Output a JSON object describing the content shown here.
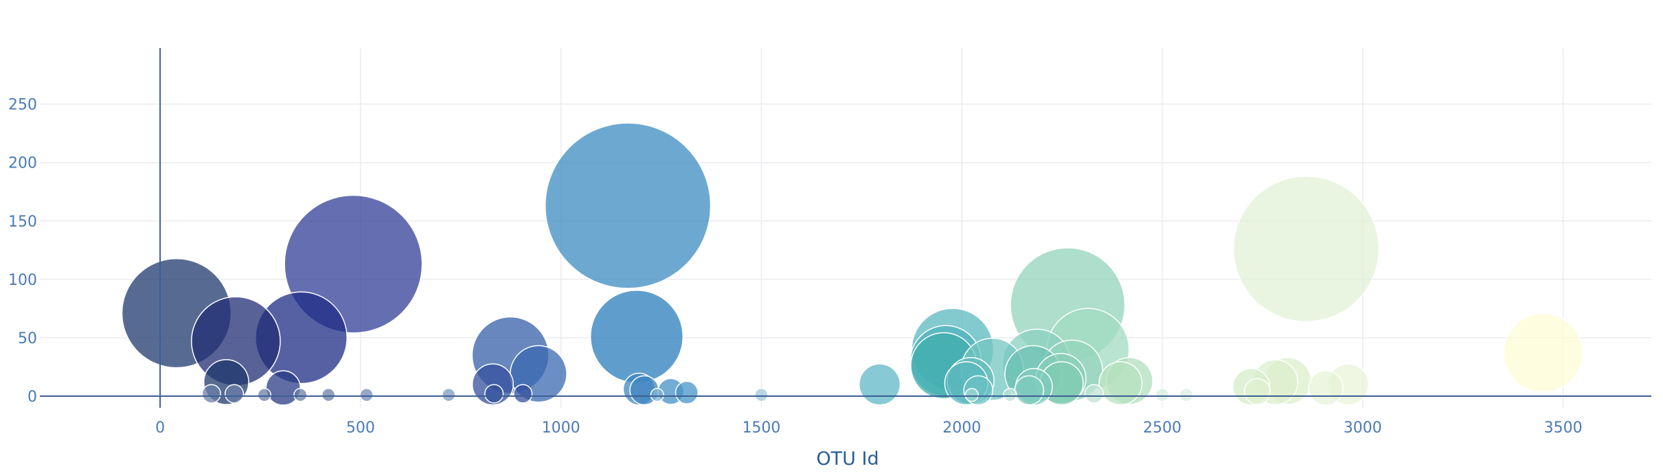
{
  "chart_data": {
    "type": "scatter",
    "subtype": "bubble",
    "title": "",
    "xlabel": "OTU Id",
    "ylabel": "",
    "xlim": [
      -300,
      3720
    ],
    "ylim": [
      -10,
      298
    ],
    "x_ticks": [
      0,
      500,
      1000,
      1500,
      2000,
      2500,
      3000,
      3500
    ],
    "y_ticks": [
      0,
      50,
      100,
      150,
      200,
      250
    ],
    "grid": true,
    "legend": "none",
    "colorscale": "Earth",
    "color_stops": [
      "#1f3a6e",
      "#323e96",
      "#4b75b8",
      "#4f9ac9",
      "#6cc2c4",
      "#a2dbc1",
      "#e2f2d5",
      "#ffffe0"
    ],
    "opacity": 0.75,
    "points": [
      {
        "x": 41,
        "y": 71,
        "color": "#1f3a6e"
      },
      {
        "x": 189,
        "y": 47,
        "color": "#222e74"
      },
      {
        "x": 165,
        "y": 12,
        "color": "#1f3a6e"
      },
      {
        "x": 307,
        "y": 7,
        "color": "#2a3c86"
      },
      {
        "x": 352,
        "y": 50,
        "color": "#1e2c86"
      },
      {
        "x": 482,
        "y": 113,
        "color": "#323e96"
      },
      {
        "x": 830,
        "y": 10,
        "color": "#34509e"
      },
      {
        "x": 874,
        "y": 35,
        "color": "#345fa8"
      },
      {
        "x": 944,
        "y": 19,
        "color": "#3a68b0"
      },
      {
        "x": 1167,
        "y": 163,
        "color": "#3c8bc0"
      },
      {
        "x": 1189,
        "y": 51,
        "color": "#2a7dbb"
      },
      {
        "x": 1195,
        "y": 6,
        "color": "#3f86c0"
      },
      {
        "x": 1208,
        "y": 5,
        "color": "#3f86c0"
      },
      {
        "x": 1274,
        "y": 4,
        "color": "#4490c5"
      },
      {
        "x": 1314,
        "y": 3,
        "color": "#4696c8"
      },
      {
        "x": 1795,
        "y": 10,
        "color": "#5fb7c5"
      },
      {
        "x": 1977,
        "y": 40,
        "color": "#5ab8bd"
      },
      {
        "x": 1960,
        "y": 30,
        "color": "#4eb3ba"
      },
      {
        "x": 1955,
        "y": 26,
        "color": "#40aeae"
      },
      {
        "x": 2011,
        "y": 11,
        "color": "#5ab8bd"
      },
      {
        "x": 2022,
        "y": 13,
        "color": "#62bcbd"
      },
      {
        "x": 2041,
        "y": 5,
        "color": "#6cc2c4"
      },
      {
        "x": 2076,
        "y": 23,
        "color": "#73c6c0"
      },
      {
        "x": 2187,
        "y": 28,
        "color": "#8ad0c0"
      },
      {
        "x": 2178,
        "y": 19,
        "color": "#6cc2b4"
      },
      {
        "x": 2180,
        "y": 8,
        "color": "#7fcbbe"
      },
      {
        "x": 2168,
        "y": 5,
        "color": "#7fcbbe"
      },
      {
        "x": 2264,
        "y": 78,
        "color": "#93d3bb"
      },
      {
        "x": 2315,
        "y": 40,
        "color": "#a2dbc1"
      },
      {
        "x": 2275,
        "y": 22,
        "color": "#95d4bc"
      },
      {
        "x": 2247,
        "y": 15,
        "color": "#88cfb8"
      },
      {
        "x": 2249,
        "y": 11,
        "color": "#7fcbb2"
      },
      {
        "x": 2396,
        "y": 11,
        "color": "#b6e2bf"
      },
      {
        "x": 2418,
        "y": 13,
        "color": "#b0dfbc"
      },
      {
        "x": 2722,
        "y": 8,
        "color": "#d6ecc8"
      },
      {
        "x": 2782,
        "y": 12,
        "color": "#dcefcc"
      },
      {
        "x": 2813,
        "y": 13,
        "color": "#dcefcc"
      },
      {
        "x": 2737,
        "y": 4,
        "color": "#e0f0d0"
      },
      {
        "x": 2859,
        "y": 126,
        "color": "#e2f2d5"
      },
      {
        "x": 2908,
        "y": 7,
        "color": "#e6f3d6"
      },
      {
        "x": 2964,
        "y": 10,
        "color": "#e9f4d8"
      },
      {
        "x": 3450,
        "y": 37,
        "color": "#fffcd6"
      },
      {
        "x": 128,
        "y": 2,
        "color": "#6a7fa6"
      },
      {
        "x": 185,
        "y": 2,
        "color": "#6a7fa6"
      },
      {
        "x": 260,
        "y": 1,
        "color": "#6a7fa6"
      },
      {
        "x": 350,
        "y": 1,
        "color": "#6a7fa6"
      },
      {
        "x": 420,
        "y": 1,
        "color": "#6a7fa6"
      },
      {
        "x": 515,
        "y": 1,
        "color": "#7488b8"
      },
      {
        "x": 720,
        "y": 1,
        "color": "#7e9ac2"
      },
      {
        "x": 833,
        "y": 2,
        "color": "#34509e"
      },
      {
        "x": 905,
        "y": 2,
        "color": "#34509e"
      },
      {
        "x": 1240,
        "y": 1,
        "color": "#7fb0d6"
      },
      {
        "x": 1500,
        "y": 1,
        "color": "#9ec8da"
      },
      {
        "x": 2025,
        "y": 1,
        "color": "#9fd8d6"
      },
      {
        "x": 2120,
        "y": 1,
        "color": "#b7e2d6"
      },
      {
        "x": 2330,
        "y": 2,
        "color": "#bfe4d2"
      },
      {
        "x": 2500,
        "y": 1,
        "color": "#d7eedf"
      },
      {
        "x": 2560,
        "y": 1,
        "color": "#d7eedf"
      }
    ]
  }
}
